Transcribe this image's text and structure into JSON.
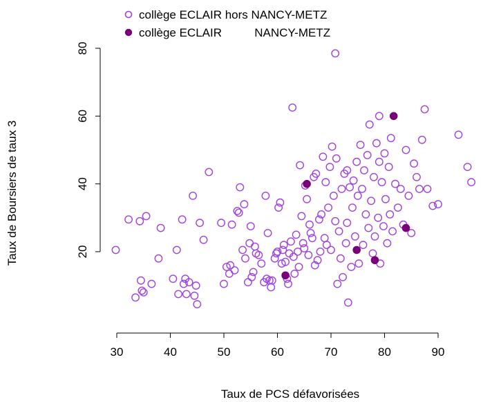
{
  "chart_data": {
    "type": "scatter",
    "xlabel": "Taux de PCS défavorisées",
    "ylabel": "Taux de Boursiers de taux 3",
    "xlim": [
      28.5,
      97
    ],
    "ylim": [
      3,
      82
    ],
    "x_ticks": [
      30,
      40,
      50,
      60,
      70,
      80,
      90
    ],
    "y_ticks": [
      20,
      40,
      60,
      80
    ],
    "grid": false,
    "legend_position": "top",
    "series": [
      {
        "name": "collège ECLAIR hors NANCY-METZ",
        "marker": "open-circle",
        "color": "#a040e0",
        "points": [
          [
            29.8,
            20.5
          ],
          [
            32.2,
            29.5
          ],
          [
            33.5,
            6.5
          ],
          [
            34.3,
            29.0
          ],
          [
            34.5,
            11.5
          ],
          [
            34.7,
            8.5
          ],
          [
            35.0,
            8.0
          ],
          [
            35.5,
            30.5
          ],
          [
            36.5,
            10.5
          ],
          [
            37.8,
            18.0
          ],
          [
            38.2,
            27.0
          ],
          [
            40.5,
            12.0
          ],
          [
            41.2,
            20.5
          ],
          [
            41.5,
            7.5
          ],
          [
            42.2,
            29.5
          ],
          [
            42.5,
            10.5
          ],
          [
            42.8,
            12.0
          ],
          [
            43.0,
            7.5
          ],
          [
            43.5,
            11.0
          ],
          [
            44.2,
            36.5
          ],
          [
            44.5,
            7.0
          ],
          [
            44.8,
            10.0
          ],
          [
            45.0,
            4.5
          ],
          [
            45.5,
            28.5
          ],
          [
            46.2,
            23.5
          ],
          [
            47.2,
            43.5
          ],
          [
            49.5,
            28.5
          ],
          [
            50.0,
            10.5
          ],
          [
            50.5,
            15.5
          ],
          [
            51.0,
            13.5
          ],
          [
            51.2,
            16.0
          ],
          [
            51.5,
            28.0
          ],
          [
            52.0,
            14.5
          ],
          [
            52.5,
            32.0
          ],
          [
            52.8,
            31.5
          ],
          [
            53.0,
            39.0
          ],
          [
            53.5,
            20.5
          ],
          [
            53.8,
            34.0
          ],
          [
            54.0,
            18.0
          ],
          [
            54.5,
            11.0
          ],
          [
            54.8,
            22.5
          ],
          [
            55.0,
            27.5
          ],
          [
            55.2,
            12.5
          ],
          [
            55.5,
            14.0
          ],
          [
            55.8,
            21.5
          ],
          [
            56.0,
            19.5
          ],
          [
            56.5,
            19.0
          ],
          [
            57.0,
            16.5
          ],
          [
            57.5,
            11.0
          ],
          [
            57.8,
            36.5
          ],
          [
            58.0,
            12.0
          ],
          [
            58.2,
            25.5
          ],
          [
            58.5,
            11.5
          ],
          [
            58.8,
            9.5
          ],
          [
            59.0,
            11.5
          ],
          [
            59.5,
            18.0
          ],
          [
            59.8,
            19.5
          ],
          [
            60.0,
            20.0
          ],
          [
            60.2,
            33.0
          ],
          [
            60.5,
            34.5
          ],
          [
            60.8,
            16.5
          ],
          [
            61.0,
            20.5
          ],
          [
            61.2,
            22.0
          ],
          [
            61.5,
            17.0
          ],
          [
            61.8,
            12.0
          ],
          [
            62.0,
            10.5
          ],
          [
            62.2,
            19.5
          ],
          [
            62.5,
            23.0
          ],
          [
            62.8,
            62.5
          ],
          [
            63.0,
            18.5
          ],
          [
            63.2,
            13.5
          ],
          [
            63.5,
            25.0
          ],
          [
            63.8,
            20.0
          ],
          [
            64.0,
            15.5
          ],
          [
            64.2,
            45.5
          ],
          [
            64.5,
            30.5
          ],
          [
            64.8,
            22.5
          ],
          [
            65.0,
            21.0
          ],
          [
            65.2,
            39.5
          ],
          [
            65.5,
            35.5
          ],
          [
            65.8,
            19.0
          ],
          [
            66.0,
            28.0
          ],
          [
            66.2,
            25.5
          ],
          [
            66.5,
            24.0
          ],
          [
            66.8,
            42.0
          ],
          [
            67.0,
            16.0
          ],
          [
            67.2,
            43.0
          ],
          [
            67.5,
            17.5
          ],
          [
            67.8,
            29.5
          ],
          [
            68.0,
            20.0
          ],
          [
            68.2,
            31.0
          ],
          [
            68.5,
            48.0
          ],
          [
            68.8,
            24.0
          ],
          [
            69.0,
            40.5
          ],
          [
            69.2,
            22.0
          ],
          [
            69.5,
            33.0
          ],
          [
            69.8,
            45.0
          ],
          [
            70.0,
            20.5
          ],
          [
            70.2,
            51.0
          ],
          [
            70.5,
            36.5
          ],
          [
            70.8,
            29.0
          ],
          [
            71.0,
            47.5
          ],
          [
            71.2,
            10.5
          ],
          [
            71.5,
            26.0
          ],
          [
            71.8,
            18.0
          ],
          [
            72.0,
            38.5
          ],
          [
            72.2,
            12.5
          ],
          [
            72.5,
            43.0
          ],
          [
            72.8,
            22.5
          ],
          [
            73.0,
            28.5
          ],
          [
            73.2,
            5.0
          ],
          [
            73.5,
            39.0
          ],
          [
            73.8,
            15.5
          ],
          [
            74.0,
            33.0
          ],
          [
            74.2,
            41.0
          ],
          [
            74.5,
            24.5
          ],
          [
            74.8,
            46.5
          ],
          [
            75.0,
            36.5
          ],
          [
            75.2,
            16.5
          ],
          [
            75.5,
            51.5
          ],
          [
            75.8,
            38.5
          ],
          [
            76.0,
            22.0
          ],
          [
            76.2,
            44.0
          ],
          [
            76.5,
            31.0
          ],
          [
            76.8,
            48.5
          ],
          [
            77.0,
            27.0
          ],
          [
            77.2,
            57.5
          ],
          [
            77.5,
            35.0
          ],
          [
            77.8,
            19.5
          ],
          [
            78.0,
            42.0
          ],
          [
            78.2,
            24.5
          ],
          [
            78.5,
            52.0
          ],
          [
            78.8,
            30.0
          ],
          [
            79.0,
            46.5
          ],
          [
            79.2,
            16.5
          ],
          [
            79.5,
            40.5
          ],
          [
            79.8,
            27.5
          ],
          [
            80.0,
            49.0
          ],
          [
            80.2,
            35.5
          ],
          [
            80.5,
            22.5
          ],
          [
            80.8,
            45.0
          ],
          [
            81.0,
            31.0
          ],
          [
            81.2,
            53.5
          ],
          [
            81.5,
            26.0
          ],
          [
            82.0,
            40.0
          ],
          [
            82.5,
            33.0
          ],
          [
            83.0,
            38.5
          ],
          [
            83.5,
            28.0
          ],
          [
            84.0,
            50.0
          ],
          [
            84.5,
            36.5
          ],
          [
            85.0,
            25.5
          ],
          [
            85.5,
            46.0
          ],
          [
            86.0,
            42.0
          ],
          [
            86.5,
            38.5
          ],
          [
            87.0,
            53.0
          ],
          [
            87.5,
            62.0
          ],
          [
            88.0,
            38.5
          ],
          [
            89.0,
            33.5
          ],
          [
            90.0,
            34.0
          ],
          [
            93.8,
            54.5
          ],
          [
            95.5,
            45.0
          ],
          [
            96.2,
            40.5
          ],
          [
            70.8,
            78.5
          ],
          [
            79.0,
            60.0
          ],
          [
            73.0,
            44.0
          ]
        ]
      },
      {
        "name": "collège ECLAIR          NANCY-METZ",
        "marker": "filled-circle",
        "color": "#7a007a",
        "points": [
          [
            61.5,
            13.0
          ],
          [
            65.5,
            40.0
          ],
          [
            74.8,
            20.5
          ],
          [
            78.2,
            17.5
          ],
          [
            81.7,
            60.0
          ],
          [
            84.0,
            27.0
          ]
        ]
      }
    ]
  }
}
